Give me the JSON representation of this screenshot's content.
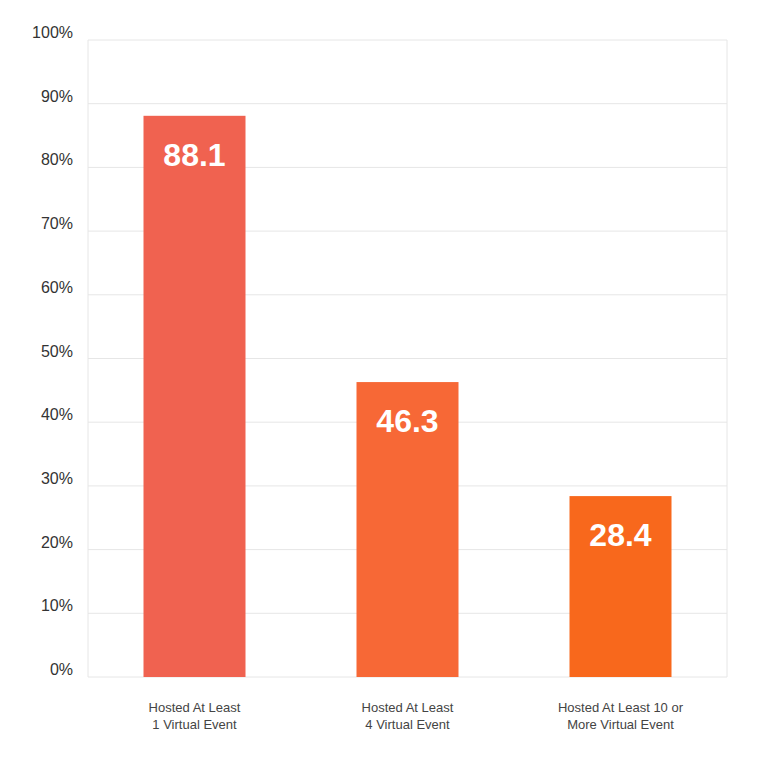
{
  "chart_data": {
    "type": "bar",
    "categories": [
      "Hosted At Least\n1 Virtual Event",
      "Hosted At Least\n4 Virtual Event",
      "Hosted At Least 10 or\nMore Virtual Event"
    ],
    "values": [
      88.1,
      46.3,
      28.4
    ],
    "colors": [
      "#f06250",
      "#f76836",
      "#f8681c"
    ],
    "ylim": [
      0,
      100
    ],
    "yticks": [
      {
        "value": 0,
        "label": "0%"
      },
      {
        "value": 10,
        "label": "10%"
      },
      {
        "value": 20,
        "label": "20%"
      },
      {
        "value": 30,
        "label": "30%"
      },
      {
        "value": 40,
        "label": "40%"
      },
      {
        "value": 50,
        "label": "50%"
      },
      {
        "value": 60,
        "label": "60%"
      },
      {
        "value": 70,
        "label": "70%"
      },
      {
        "value": 80,
        "label": "80%"
      },
      {
        "value": 90,
        "label": "90%"
      },
      {
        "value": 100,
        "label": "100%"
      }
    ],
    "grid": true,
    "data_labels": true
  }
}
